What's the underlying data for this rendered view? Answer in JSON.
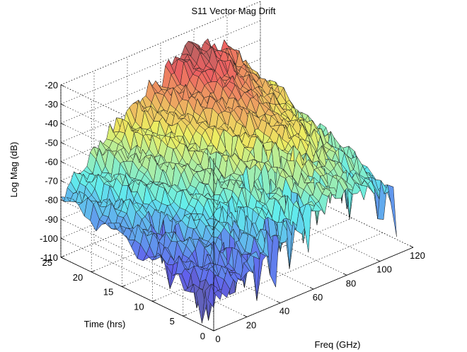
{
  "chart_data": {
    "type": "surface",
    "title": "S11 Vector Mag Drift",
    "xlabel": "Freq (GHz)",
    "ylabel": "Time (hrs)",
    "zlabel": "Log Mag (dB)",
    "xlim": [
      0,
      120
    ],
    "ylim": [
      0,
      25
    ],
    "zlim": [
      -110,
      -20
    ],
    "x_ticks": [
      "0",
      "20",
      "40",
      "60",
      "80",
      "100",
      "120"
    ],
    "y_ticks": [
      "0",
      "5",
      "10",
      "15",
      "20",
      "25"
    ],
    "z_ticks": [
      "-20",
      "-30",
      "-40",
      "-50",
      "-60",
      "-70",
      "-80",
      "-90",
      "-100",
      "-110"
    ],
    "grid": true,
    "colormap": "jet",
    "surface_profile": {
      "freq_ghz": [
        0,
        10,
        20,
        30,
        40,
        50,
        60,
        70,
        80,
        90,
        100,
        110
      ],
      "log_mag_db_time_25": [
        -78,
        -70,
        -62,
        -55,
        -50,
        -45,
        -38,
        -30,
        -27,
        -33,
        -37,
        -52
      ],
      "log_mag_db_time_0": [
        -95,
        -90,
        -88,
        -83,
        -78,
        -75,
        -70,
        -67,
        -66,
        -70,
        -72,
        -80
      ]
    }
  }
}
